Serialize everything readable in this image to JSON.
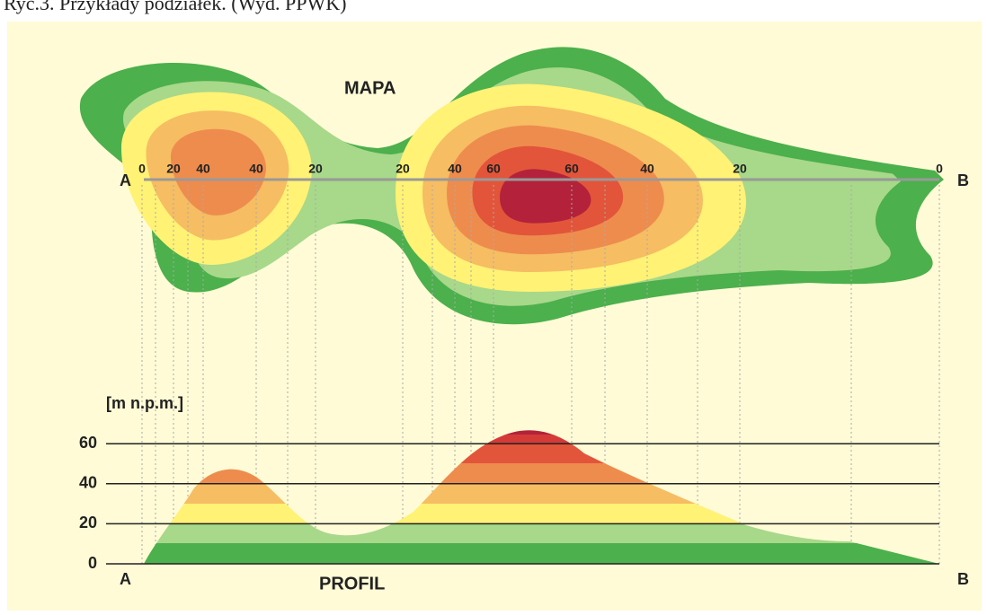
{
  "caption": "Ryc.3. Przykłady podziałek. (Wyd. PPWK)",
  "map": {
    "title": "MAPA",
    "start": "A",
    "end": "B",
    "contour_labels": [
      0,
      20,
      40,
      40,
      20,
      20,
      40,
      60,
      60,
      40,
      20,
      0
    ]
  },
  "profile": {
    "title": "PROFIL",
    "unit": "[m n.p.m.]",
    "start": "A",
    "end": "B",
    "levels": [
      60,
      40,
      20,
      0
    ]
  }
}
